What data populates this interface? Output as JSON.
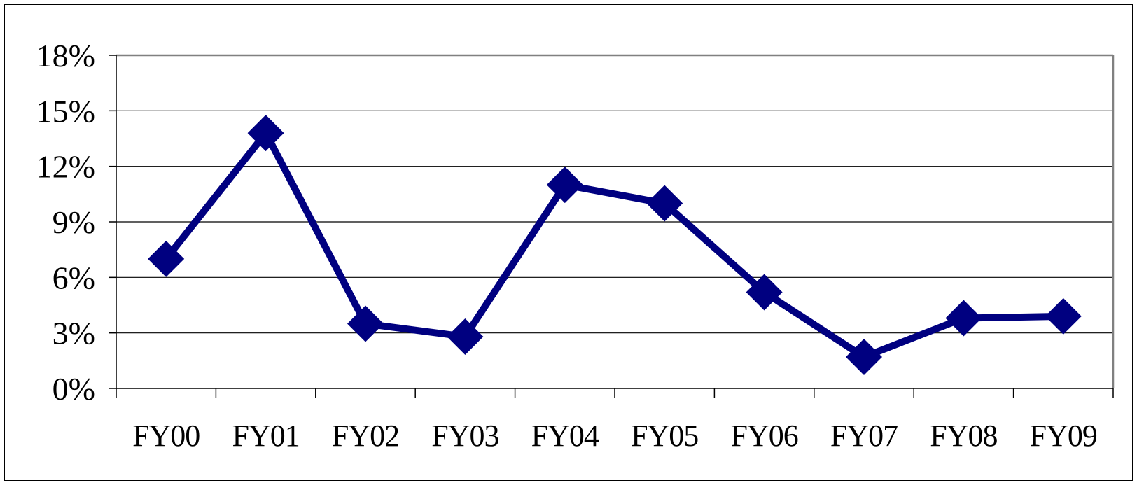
{
  "chart_data": {
    "type": "line",
    "categories": [
      "FY00",
      "FY01",
      "FY02",
      "FY03",
      "FY04",
      "FY05",
      "FY06",
      "FY07",
      "FY08",
      "FY09"
    ],
    "series": [
      {
        "values": [
          7.0,
          13.8,
          3.5,
          2.8,
          11.0,
          10.0,
          5.2,
          1.7,
          3.8,
          3.9
        ]
      }
    ],
    "yticks": [
      "0%",
      "3%",
      "6%",
      "9%",
      "12%",
      "15%",
      "18%"
    ],
    "ytick_values": [
      0,
      3,
      6,
      9,
      12,
      15,
      18
    ],
    "ylim": [
      0,
      18
    ],
    "grid": true,
    "legend": "none",
    "colors": {
      "series": "#000080",
      "grid": "#000000",
      "axis": "#808080"
    }
  }
}
